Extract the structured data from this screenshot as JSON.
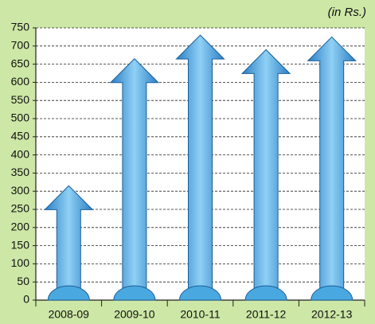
{
  "chart_data": {
    "type": "arrow-bar",
    "subtitle": "(in Rs.)",
    "categories": [
      "2008-09",
      "2009-10",
      "2010-11",
      "2011-12",
      "2012-13"
    ],
    "values": [
      315,
      665,
      730,
      690,
      725
    ],
    "color": "#4aa8e0",
    "ylim": [
      0,
      750
    ],
    "yticks": [
      0,
      50,
      100,
      150,
      200,
      250,
      300,
      350,
      400,
      450,
      500,
      550,
      600,
      650,
      700,
      750
    ],
    "grid": true
  }
}
